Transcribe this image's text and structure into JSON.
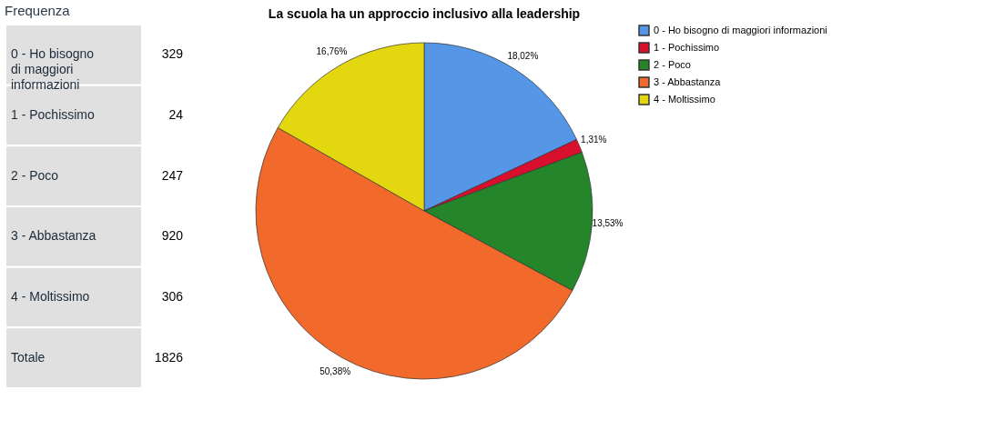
{
  "chart_data": [
    {
      "type": "other",
      "title": "Frequenza",
      "categories": [
        "0 - Ho bisogno di maggiori informazioni",
        "1 - Pochissimo",
        "2 - Poco",
        "3 - Abbastanza",
        "4 - Moltissimo",
        "Totale"
      ],
      "values": [
        329,
        24,
        247,
        920,
        306,
        1826
      ],
      "data_labels": true
    },
    {
      "type": "pie",
      "title": "La scuola ha un approccio inclusivo alla leadership",
      "categories": [
        "0 - Ho bisogno di maggiori informazioni",
        "1 - Pochissimo",
        "2 - Poco",
        "3 - Abbastanza",
        "4 - Moltissimo"
      ],
      "values": [
        18.02,
        1.31,
        13.53,
        50.38,
        16.76
      ],
      "value_labels": [
        "18,02%",
        "1,31%",
        "13,53%",
        "50,38%",
        "16,76%"
      ],
      "colors": [
        "#5596e6",
        "#d8102e",
        "#25852a",
        "#f1692b",
        "#e3d70f"
      ],
      "legend": "top right"
    }
  ]
}
